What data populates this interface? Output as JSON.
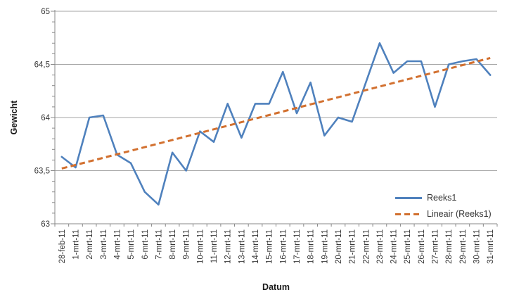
{
  "chart_data": {
    "type": "line",
    "title": "",
    "xlabel": "Datum",
    "ylabel": "Gewicht",
    "ylim": [
      63,
      65
    ],
    "grid": true,
    "legend_position": "right",
    "y_ticks": [
      {
        "value": 65,
        "label": "65"
      },
      {
        "value": 64.5,
        "label": "64,5"
      },
      {
        "value": 64,
        "label": "64"
      },
      {
        "value": 63.5,
        "label": "63,5"
      },
      {
        "value": 63,
        "label": "63"
      }
    ],
    "categories": [
      "28-feb-11",
      "1-mrt-11",
      "2-mrt-11",
      "3-mrt-11",
      "4-mrt-11",
      "5-mrt-11",
      "6-mrt-11",
      "7-mrt-11",
      "8-mrt-11",
      "9-mrt-11",
      "10-mrt-11",
      "11-mrt-11",
      "12-mrt-11",
      "13-mrt-11",
      "14-mrt-11",
      "15-mrt-11",
      "16-mrt-11",
      "17-mrt-11",
      "18-mrt-11",
      "19-mrt-11",
      "20-mrt-11",
      "21-mrt-11",
      "22-mrt-11",
      "23-mrt-11",
      "24-mrt-11",
      "25-mrt-11",
      "26-mrt-11",
      "27-mrt-11",
      "28-mrt-11",
      "29-mrt-11",
      "30-mrt-11",
      "31-mrt-11"
    ],
    "series": [
      {
        "name": "Reeks1",
        "type": "line",
        "color": "#4F81BD",
        "dash": false,
        "values": [
          63.63,
          63.53,
          64.0,
          64.02,
          63.65,
          63.57,
          63.3,
          63.18,
          63.67,
          63.5,
          63.87,
          63.77,
          64.13,
          63.81,
          64.13,
          64.13,
          64.43,
          64.04,
          64.33,
          63.83,
          64.0,
          63.96,
          64.33,
          64.7,
          64.42,
          64.53,
          64.53,
          64.1,
          64.5,
          64.53,
          64.55,
          64.4
        ]
      },
      {
        "name": "Lineair (Reeks1)",
        "type": "trendline",
        "color": "#D2702F",
        "dash": true,
        "start": 63.52,
        "end": 64.56
      }
    ],
    "colors": {
      "gridline": "#A6A6A6",
      "axis": "#898989",
      "tick_label": "#383838"
    }
  }
}
